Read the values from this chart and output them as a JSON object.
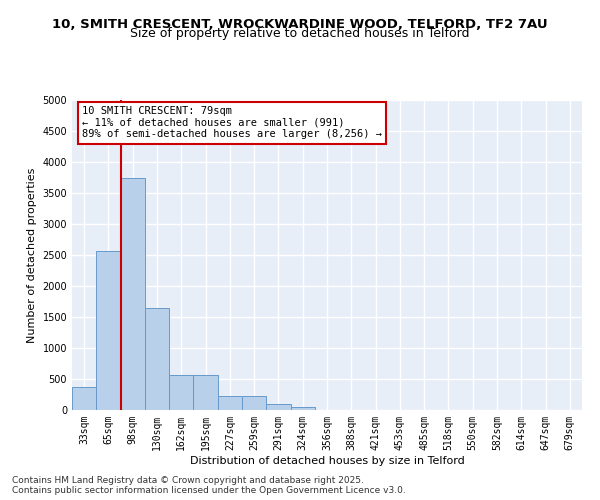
{
  "title": "10, SMITH CRESCENT, WROCKWARDINE WOOD, TELFORD, TF2 7AU",
  "subtitle": "Size of property relative to detached houses in Telford",
  "xlabel": "Distribution of detached houses by size in Telford",
  "ylabel": "Number of detached properties",
  "categories": [
    "33sqm",
    "65sqm",
    "98sqm",
    "130sqm",
    "162sqm",
    "195sqm",
    "227sqm",
    "259sqm",
    "291sqm",
    "324sqm",
    "356sqm",
    "388sqm",
    "421sqm",
    "453sqm",
    "485sqm",
    "518sqm",
    "550sqm",
    "582sqm",
    "614sqm",
    "647sqm",
    "679sqm"
  ],
  "values": [
    370,
    2560,
    3750,
    1650,
    560,
    560,
    230,
    230,
    100,
    55,
    0,
    0,
    0,
    0,
    0,
    0,
    0,
    0,
    0,
    0,
    0
  ],
  "bar_color": "#b8d0ea",
  "bar_edge_color": "#6699cc",
  "vline_x": 1.5,
  "vline_color": "#cc0000",
  "annotation_text": "10 SMITH CRESCENT: 79sqm\n← 11% of detached houses are smaller (991)\n89% of semi-detached houses are larger (8,256) →",
  "annotation_box_color": "#cc0000",
  "ylim": [
    0,
    5000
  ],
  "yticks": [
    0,
    500,
    1000,
    1500,
    2000,
    2500,
    3000,
    3500,
    4000,
    4500,
    5000
  ],
  "bg_color": "#e8eef8",
  "grid_color": "#ffffff",
  "footer_line1": "Contains HM Land Registry data © Crown copyright and database right 2025.",
  "footer_line2": "Contains public sector information licensed under the Open Government Licence v3.0.",
  "title_fontsize": 9.5,
  "subtitle_fontsize": 9,
  "axis_label_fontsize": 8,
  "tick_fontsize": 7,
  "annotation_fontsize": 7.5,
  "footer_fontsize": 6.5
}
